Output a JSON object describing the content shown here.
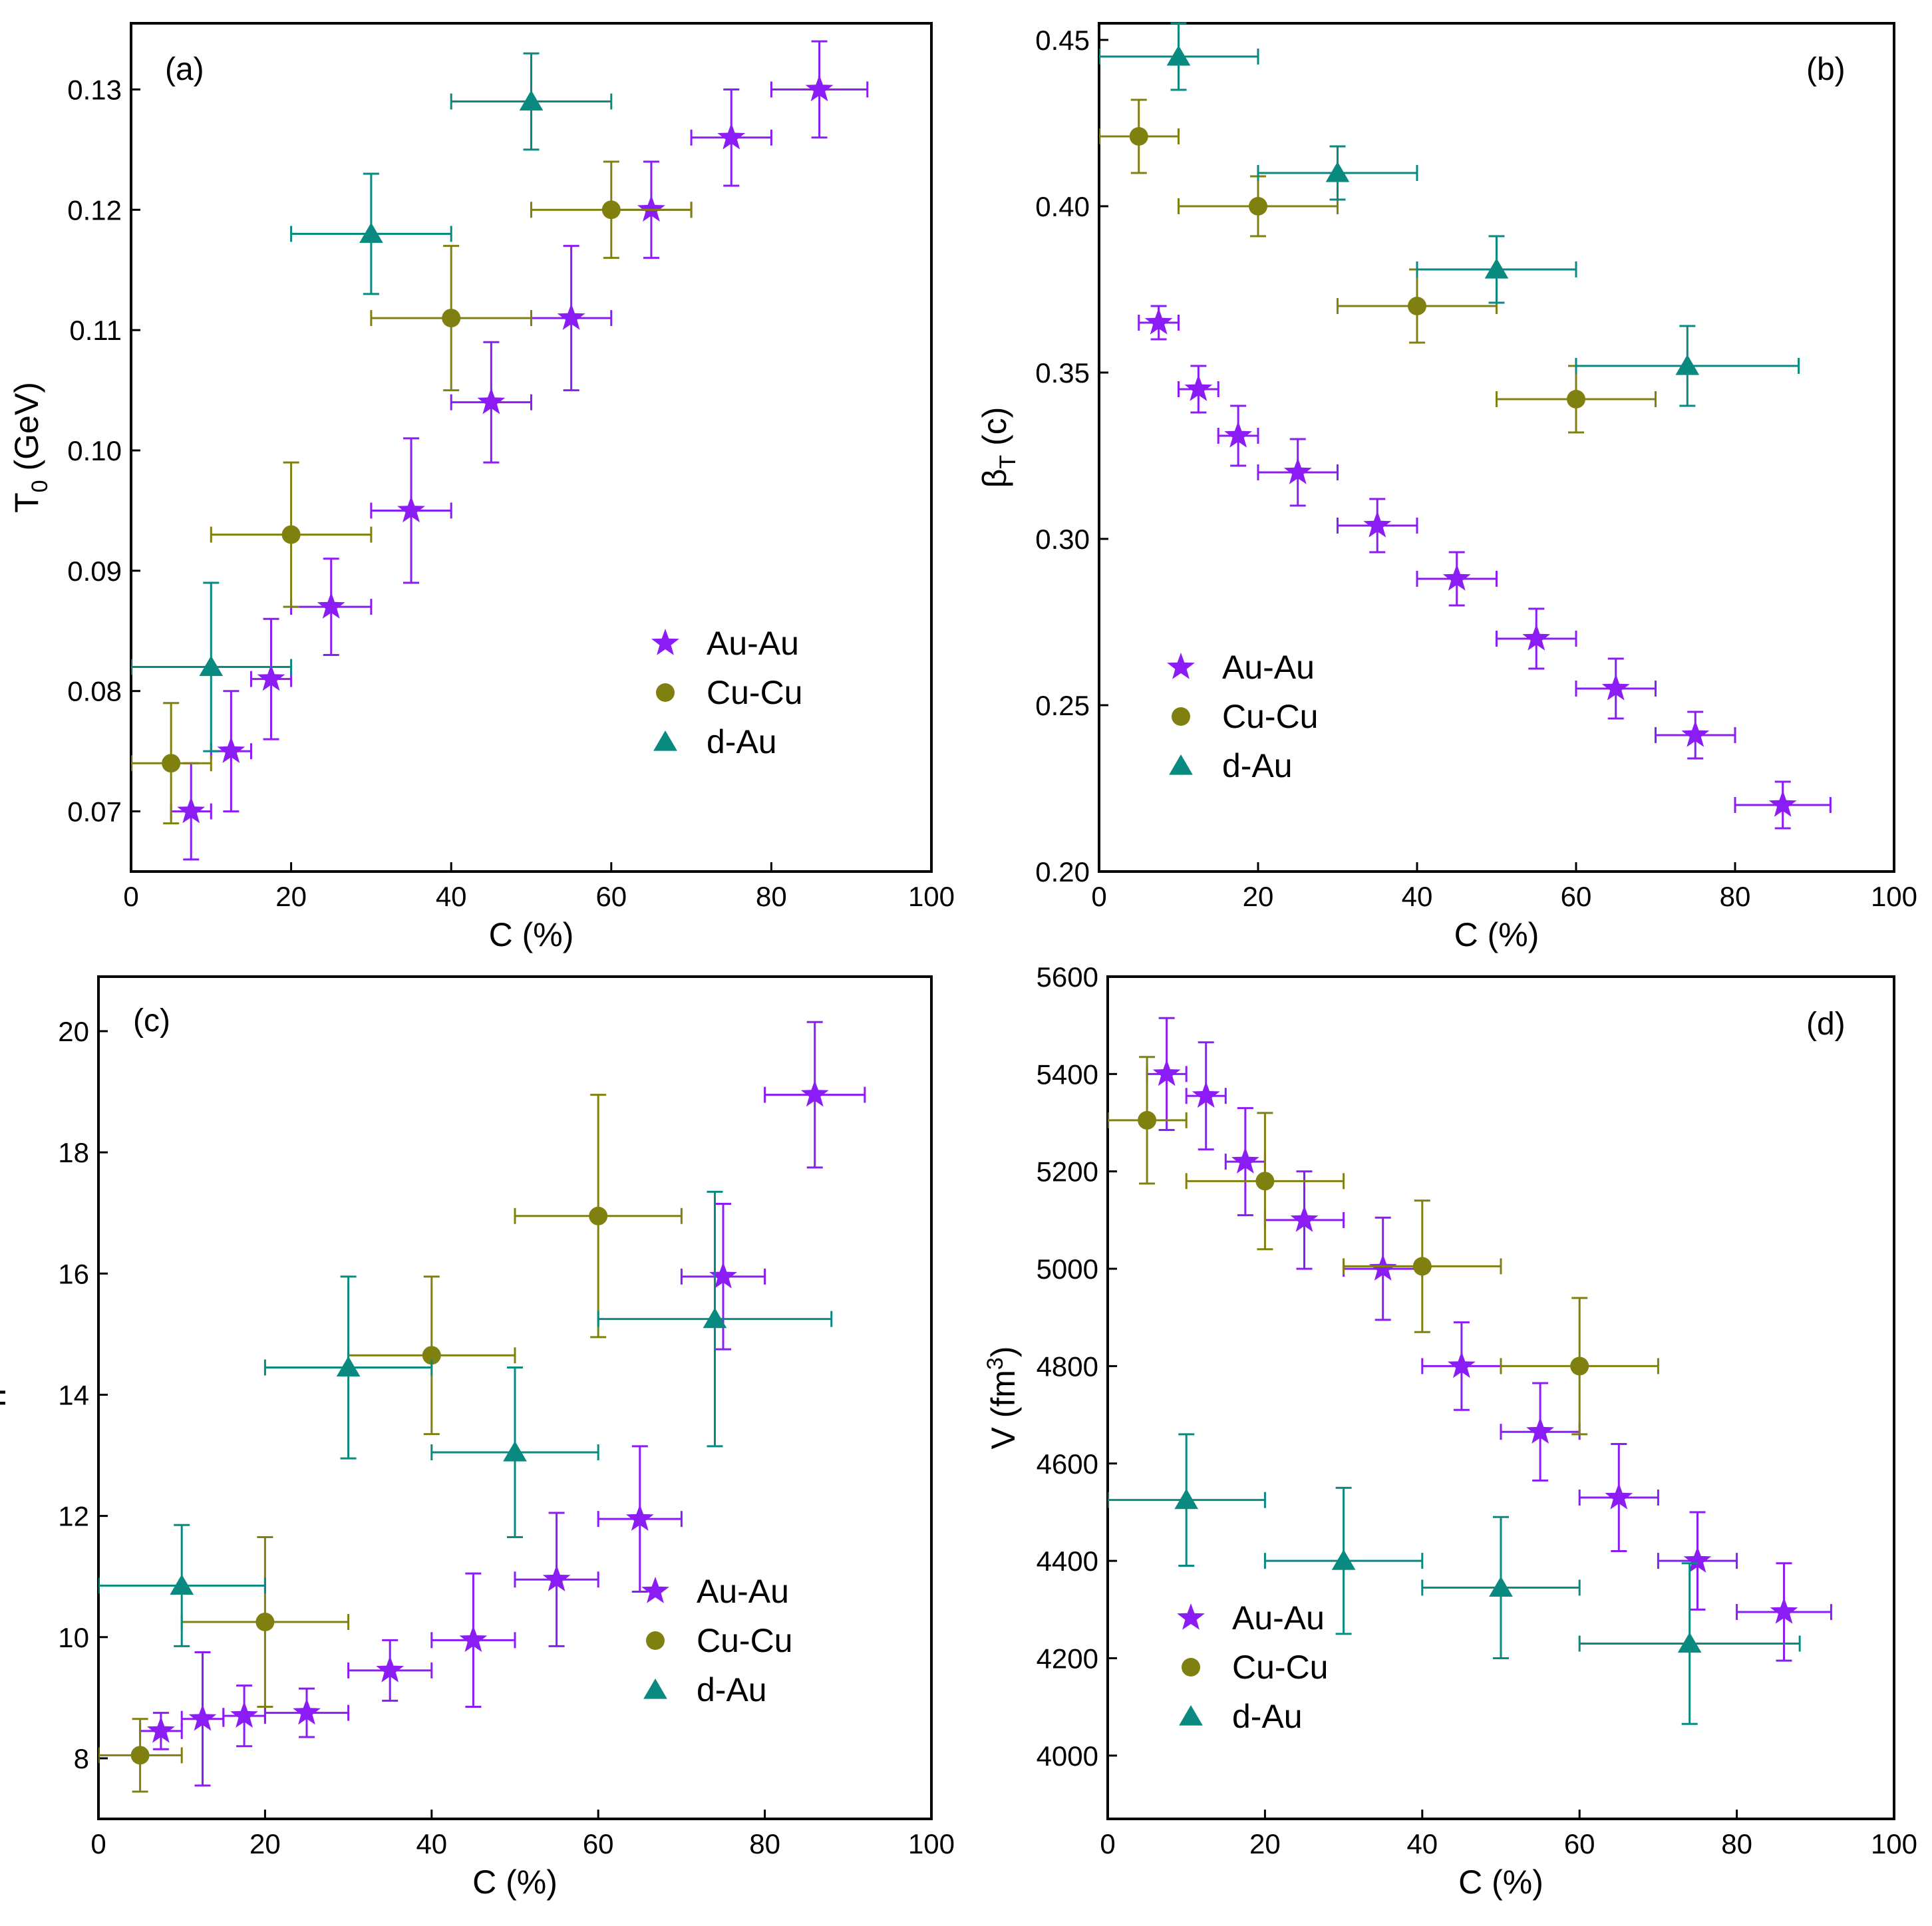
{
  "figure": {
    "colors": {
      "au_au": "#8B1CF5",
      "cu_cu": "#808010",
      "d_au": "#088A80",
      "axis": "#000000"
    }
  },
  "chart_data": [
    {
      "id": "a",
      "type": "scatter",
      "panel_label": "(a)",
      "xlabel": "C (%)",
      "ylabel_main": "T",
      "ylabel_sub": "0",
      "ylabel_rest": " (GeV)",
      "xlim": [
        0,
        100
      ],
      "ylim": [
        0.065,
        0.1355
      ],
      "xticks": [
        0,
        20,
        40,
        60,
        80,
        100
      ],
      "xtick_labels": [
        "0",
        "20",
        "40",
        "60",
        "80",
        "100"
      ],
      "yticks": [
        0.07,
        0.08,
        0.09,
        0.1,
        0.11,
        0.12,
        0.13
      ],
      "ytick_labels": [
        "0.07",
        "0.08",
        "0.09",
        "0.10",
        "0.11",
        "0.12",
        "0.13"
      ],
      "legend_position": "lower-right",
      "series": [
        {
          "name": "Au-Au",
          "marker": "star",
          "color": "#8B1CF5",
          "points": [
            [
              7.5,
              0.07,
              2.5,
              0.004
            ],
            [
              12.5,
              0.075,
              2.5,
              0.005
            ],
            [
              17.5,
              0.081,
              2.5,
              0.005
            ],
            [
              25,
              0.087,
              5,
              0.004
            ],
            [
              35,
              0.095,
              5,
              0.006
            ],
            [
              45,
              0.104,
              5,
              0.005
            ],
            [
              55,
              0.111,
              5,
              0.006
            ],
            [
              65,
              0.12,
              5,
              0.004
            ],
            [
              75,
              0.126,
              5,
              0.004
            ],
            [
              86,
              0.13,
              6,
              0.004
            ]
          ]
        },
        {
          "name": "Cu-Cu",
          "marker": "circle",
          "color": "#808010",
          "points": [
            [
              5,
              0.074,
              5,
              0.005
            ],
            [
              20,
              0.093,
              10,
              0.006
            ],
            [
              40,
              0.111,
              10,
              0.006
            ],
            [
              60,
              0.12,
              10,
              0.004
            ]
          ]
        },
        {
          "name": "d-Au",
          "marker": "triangle",
          "color": "#088A80",
          "points": [
            [
              10,
              0.082,
              10,
              0.007
            ],
            [
              30,
              0.118,
              10,
              0.005
            ],
            [
              50,
              0.129,
              10,
              0.004
            ]
          ]
        }
      ]
    },
    {
      "id": "b",
      "type": "scatter",
      "panel_label": "(b)",
      "xlabel": "C (%)",
      "ylabel_main": "β",
      "ylabel_sub": "T",
      "ylabel_rest": " (c)",
      "xlim": [
        0,
        100
      ],
      "ylim": [
        0.2,
        0.455
      ],
      "xticks": [
        0,
        20,
        40,
        60,
        80,
        100
      ],
      "xtick_labels": [
        "0",
        "20",
        "40",
        "60",
        "80",
        "100"
      ],
      "yticks": [
        0.2,
        0.25,
        0.3,
        0.35,
        0.4,
        0.45
      ],
      "ytick_labels": [
        "0.20",
        "0.25",
        "0.30",
        "0.35",
        "0.40",
        "0.45"
      ],
      "legend_position": "lower-left",
      "series": [
        {
          "name": "Au-Au",
          "marker": "star",
          "color": "#8B1CF5",
          "points": [
            [
              7.5,
              0.365,
              2.5,
              0.005
            ],
            [
              12.5,
              0.345,
              2.5,
              0.007
            ],
            [
              17.5,
              0.331,
              2.5,
              0.009
            ],
            [
              25,
              0.32,
              5,
              0.01
            ],
            [
              35,
              0.304,
              5,
              0.008
            ],
            [
              45,
              0.288,
              5,
              0.008
            ],
            [
              55,
              0.27,
              5,
              0.009
            ],
            [
              65,
              0.255,
              5,
              0.009
            ],
            [
              75,
              0.241,
              5,
              0.007
            ],
            [
              86,
              0.22,
              6,
              0.007
            ]
          ]
        },
        {
          "name": "Cu-Cu",
          "marker": "circle",
          "color": "#808010",
          "points": [
            [
              5,
              0.421,
              5,
              0.011
            ],
            [
              20,
              0.4,
              10,
              0.009
            ],
            [
              40,
              0.37,
              10,
              0.011
            ],
            [
              60,
              0.342,
              10,
              0.01
            ]
          ]
        },
        {
          "name": "d-Au",
          "marker": "triangle",
          "color": "#088A80",
          "points": [
            [
              10,
              0.445,
              10,
              0.01
            ],
            [
              30,
              0.41,
              10,
              0.008
            ],
            [
              50,
              0.381,
              10,
              0.01
            ],
            [
              74,
              0.352,
              14,
              0.012
            ]
          ]
        }
      ]
    },
    {
      "id": "c",
      "type": "scatter",
      "panel_label": "(c)",
      "xlabel": "C (%)",
      "ylabel_main": "n",
      "ylabel_sub": "",
      "ylabel_rest": "",
      "xlim": [
        0,
        100
      ],
      "ylim": [
        7.0,
        20.9
      ],
      "xticks": [
        0,
        20,
        40,
        60,
        80,
        100
      ],
      "xtick_labels": [
        "0",
        "20",
        "40",
        "60",
        "80",
        "100"
      ],
      "yticks": [
        8,
        10,
        12,
        14,
        16,
        18,
        20
      ],
      "ytick_labels": [
        "8",
        "10",
        "12",
        "14",
        "16",
        "18",
        "20"
      ],
      "legend_position": "lower-right",
      "series": [
        {
          "name": "Au-Au",
          "marker": "star",
          "color": "#8B1CF5",
          "points": [
            [
              7.5,
              8.45,
              2.5,
              0.3
            ],
            [
              12.5,
              8.65,
              2.5,
              1.1
            ],
            [
              17.5,
              8.7,
              2.5,
              0.5
            ],
            [
              25,
              8.75,
              5,
              0.4
            ],
            [
              35,
              9.45,
              5,
              0.5
            ],
            [
              45,
              9.95,
              5,
              1.1
            ],
            [
              55,
              10.95,
              5,
              1.1
            ],
            [
              65,
              11.95,
              5,
              1.2
            ],
            [
              75,
              15.95,
              5,
              1.2
            ],
            [
              86,
              18.95,
              6,
              1.2
            ]
          ]
        },
        {
          "name": "Cu-Cu",
          "marker": "circle",
          "color": "#808010",
          "points": [
            [
              5,
              8.05,
              5,
              0.6
            ],
            [
              20,
              10.25,
              10,
              1.4
            ],
            [
              40,
              14.65,
              10,
              1.3
            ],
            [
              60,
              16.95,
              10,
              2.0
            ]
          ]
        },
        {
          "name": "d-Au",
          "marker": "triangle",
          "color": "#088A80",
          "points": [
            [
              10,
              10.85,
              10,
              1.0
            ],
            [
              30,
              14.45,
              10,
              1.5
            ],
            [
              50,
              13.05,
              10,
              1.4
            ],
            [
              74,
              15.25,
              14,
              2.1
            ]
          ]
        }
      ]
    },
    {
      "id": "d",
      "type": "scatter",
      "panel_label": "(d)",
      "xlabel": "C (%)",
      "ylabel_main": "V (fm",
      "ylabel_sub": "",
      "ylabel_sup": "3",
      "ylabel_rest": ")",
      "xlim": [
        0,
        100
      ],
      "ylim": [
        3870,
        5600
      ],
      "xticks": [
        0,
        20,
        40,
        60,
        80,
        100
      ],
      "xtick_labels": [
        "0",
        "20",
        "40",
        "60",
        "80",
        "100"
      ],
      "yticks": [
        4000,
        4200,
        4400,
        4600,
        4800,
        5000,
        5200,
        5400,
        5600
      ],
      "ytick_labels": [
        "4000",
        "4200",
        "4400",
        "4600",
        "4800",
        "5000",
        "5200",
        "5400",
        "5600"
      ],
      "legend_position": "lower-left",
      "series": [
        {
          "name": "Au-Au",
          "marker": "star",
          "color": "#8B1CF5",
          "points": [
            [
              7.5,
              5400,
              2.5,
              115
            ],
            [
              12.5,
              5355,
              2.5,
              110
            ],
            [
              17.5,
              5220,
              2.5,
              110
            ],
            [
              25,
              5100,
              5,
              100
            ],
            [
              35,
              5000,
              5,
              105
            ],
            [
              45,
              4800,
              5,
              90
            ],
            [
              55,
              4665,
              5,
              100
            ],
            [
              65,
              4530,
              5,
              110
            ],
            [
              75,
              4400,
              5,
              100
            ],
            [
              86,
              4295,
              6,
              100
            ]
          ]
        },
        {
          "name": "Cu-Cu",
          "marker": "circle",
          "color": "#808010",
          "points": [
            [
              5,
              5305,
              5,
              130
            ],
            [
              20,
              5180,
              10,
              140
            ],
            [
              40,
              5005,
              10,
              135
            ],
            [
              60,
              4800,
              10,
              140
            ]
          ]
        },
        {
          "name": "d-Au",
          "marker": "triangle",
          "color": "#088A80",
          "points": [
            [
              10,
              4525,
              10,
              135
            ],
            [
              30,
              4400,
              10,
              150
            ],
            [
              50,
              4345,
              10,
              145
            ],
            [
              74,
              4230,
              14,
              165
            ]
          ]
        }
      ]
    }
  ]
}
